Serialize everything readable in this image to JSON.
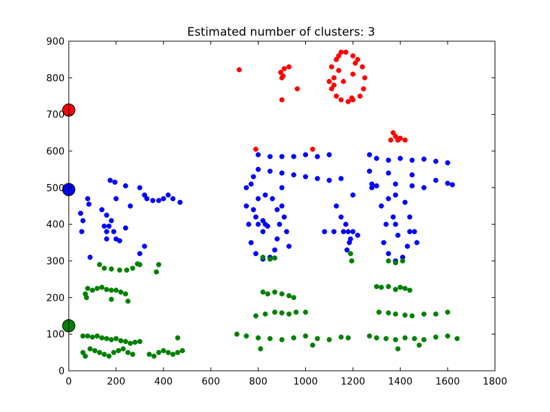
{
  "chart_data": {
    "type": "scatter",
    "title": "Estimated number of clusters: 3",
    "xlabel": "",
    "ylabel": "",
    "xlim": [
      0,
      1800
    ],
    "ylim": [
      0,
      900
    ],
    "xticks": [
      0,
      200,
      400,
      600,
      800,
      1000,
      1200,
      1400,
      1600,
      1800
    ],
    "yticks": [
      0,
      100,
      200,
      300,
      400,
      500,
      600,
      700,
      800,
      900
    ],
    "grid": false,
    "legend": "none",
    "colors": {
      "red": "#ff0000",
      "blue": "#0000ff",
      "green": "#008000"
    },
    "cluster_centers": [
      {
        "color": "red",
        "x": 0,
        "y": 712
      },
      {
        "color": "blue",
        "x": 0,
        "y": 495
      },
      {
        "color": "green",
        "x": 0,
        "y": 123
      }
    ],
    "series": [
      {
        "color": "red",
        "points": [
          [
            720,
            822
          ],
          [
            790,
            605
          ],
          [
            1030,
            605
          ],
          [
            895,
            815
          ],
          [
            905,
            805
          ],
          [
            910,
            825
          ],
          [
            900,
            800
          ],
          [
            930,
            830
          ],
          [
            900,
            740
          ],
          [
            965,
            770
          ],
          [
            1100,
            790
          ],
          [
            1110,
            830
          ],
          [
            1120,
            780
          ],
          [
            1130,
            850
          ],
          [
            1140,
            860
          ],
          [
            1150,
            870
          ],
          [
            1170,
            870
          ],
          [
            1200,
            860
          ],
          [
            1220,
            850
          ],
          [
            1240,
            830
          ],
          [
            1250,
            800
          ],
          [
            1245,
            770
          ],
          [
            1230,
            750
          ],
          [
            1200,
            740
          ],
          [
            1180,
            735
          ],
          [
            1150,
            740
          ],
          [
            1130,
            750
          ],
          [
            1120,
            800
          ],
          [
            1110,
            770
          ],
          [
            1140,
            820
          ],
          [
            1160,
            790
          ],
          [
            1200,
            810
          ],
          [
            1210,
            840
          ],
          [
            1195,
            745
          ],
          [
            1370,
            650
          ],
          [
            1380,
            640
          ],
          [
            1390,
            630
          ],
          [
            1400,
            635
          ],
          [
            1420,
            630
          ],
          [
            1360,
            630
          ]
        ]
      },
      {
        "color": "blue",
        "points": [
          [
            80,
            470
          ],
          [
            85,
            455
          ],
          [
            50,
            430
          ],
          [
            60,
            410
          ],
          [
            55,
            380
          ],
          [
            175,
            520
          ],
          [
            195,
            515
          ],
          [
            240,
            505
          ],
          [
            300,
            500
          ],
          [
            320,
            480
          ],
          [
            200,
            470
          ],
          [
            140,
            440
          ],
          [
            160,
            425
          ],
          [
            180,
            410
          ],
          [
            150,
            395
          ],
          [
            170,
            395
          ],
          [
            160,
            380
          ],
          [
            160,
            360
          ],
          [
            190,
            380
          ],
          [
            200,
            360
          ],
          [
            215,
            355
          ],
          [
            240,
            390
          ],
          [
            260,
            450
          ],
          [
            330,
            470
          ],
          [
            355,
            465
          ],
          [
            380,
            465
          ],
          [
            400,
            470
          ],
          [
            440,
            470
          ],
          [
            470,
            460
          ],
          [
            420,
            480
          ],
          [
            320,
            340
          ],
          [
            300,
            320
          ],
          [
            90,
            310
          ],
          [
            800,
            590
          ],
          [
            850,
            585
          ],
          [
            900,
            585
          ],
          [
            950,
            585
          ],
          [
            1000,
            590
          ],
          [
            1050,
            585
          ],
          [
            1100,
            590
          ],
          [
            800,
            550
          ],
          [
            850,
            545
          ],
          [
            900,
            540
          ],
          [
            950,
            535
          ],
          [
            1000,
            530
          ],
          [
            1050,
            525
          ],
          [
            1100,
            520
          ],
          [
            1150,
            525
          ],
          [
            780,
            530
          ],
          [
            750,
            500
          ],
          [
            770,
            510
          ],
          [
            900,
            500
          ],
          [
            750,
            450
          ],
          [
            760,
            400
          ],
          [
            770,
            350
          ],
          [
            790,
            320
          ],
          [
            820,
            305
          ],
          [
            850,
            310
          ],
          [
            870,
            330
          ],
          [
            880,
            360
          ],
          [
            890,
            400
          ],
          [
            880,
            440
          ],
          [
            860,
            470
          ],
          [
            830,
            480
          ],
          [
            800,
            470
          ],
          [
            780,
            440
          ],
          [
            790,
            420
          ],
          [
            800,
            400
          ],
          [
            820,
            380
          ],
          [
            820,
            410
          ],
          [
            830,
            400
          ],
          [
            840,
            395
          ],
          [
            900,
            450
          ],
          [
            910,
            420
          ],
          [
            920,
            380
          ],
          [
            930,
            340
          ],
          [
            1080,
            380
          ],
          [
            1120,
            380
          ],
          [
            1160,
            380
          ],
          [
            1200,
            380
          ],
          [
            1130,
            450
          ],
          [
            1150,
            420
          ],
          [
            1170,
            400
          ],
          [
            1180,
            380
          ],
          [
            1185,
            350
          ],
          [
            1175,
            330
          ],
          [
            1190,
            360
          ],
          [
            1200,
            480
          ],
          [
            1220,
            370
          ],
          [
            1270,
            590
          ],
          [
            1300,
            580
          ],
          [
            1350,
            575
          ],
          [
            1400,
            580
          ],
          [
            1450,
            575
          ],
          [
            1500,
            578
          ],
          [
            1550,
            572
          ],
          [
            1600,
            568
          ],
          [
            1270,
            545
          ],
          [
            1350,
            540
          ],
          [
            1450,
            535
          ],
          [
            1550,
            520
          ],
          [
            1600,
            512
          ],
          [
            1620,
            508
          ],
          [
            1280,
            510
          ],
          [
            1300,
            505
          ],
          [
            1380,
            510
          ],
          [
            1450,
            505
          ],
          [
            1500,
            500
          ],
          [
            1280,
            500
          ],
          [
            1320,
            450
          ],
          [
            1340,
            400
          ],
          [
            1330,
            350
          ],
          [
            1350,
            320
          ],
          [
            1380,
            300
          ],
          [
            1410,
            310
          ],
          [
            1430,
            340
          ],
          [
            1440,
            380
          ],
          [
            1440,
            420
          ],
          [
            1420,
            460
          ],
          [
            1380,
            480
          ],
          [
            1350,
            470
          ],
          [
            1370,
            420
          ],
          [
            1380,
            400
          ],
          [
            1390,
            370
          ],
          [
            1460,
            380
          ],
          [
            1470,
            350
          ]
        ]
      },
      {
        "color": "green",
        "points": [
          [
            130,
            290
          ],
          [
            150,
            280
          ],
          [
            180,
            278
          ],
          [
            215,
            275
          ],
          [
            245,
            275
          ],
          [
            270,
            280
          ],
          [
            290,
            292
          ],
          [
            300,
            290
          ],
          [
            380,
            290
          ],
          [
            370,
            270
          ],
          [
            80,
            225
          ],
          [
            100,
            220
          ],
          [
            120,
            225
          ],
          [
            140,
            228
          ],
          [
            160,
            222
          ],
          [
            180,
            220
          ],
          [
            200,
            220
          ],
          [
            220,
            215
          ],
          [
            240,
            210
          ],
          [
            70,
            210
          ],
          [
            75,
            200
          ],
          [
            180,
            195
          ],
          [
            250,
            190
          ],
          [
            60,
            95
          ],
          [
            80,
            95
          ],
          [
            100,
            92
          ],
          [
            120,
            95
          ],
          [
            140,
            90
          ],
          [
            160,
            88
          ],
          [
            180,
            85
          ],
          [
            200,
            88
          ],
          [
            220,
            82
          ],
          [
            240,
            80
          ],
          [
            260,
            75
          ],
          [
            280,
            78
          ],
          [
            300,
            80
          ],
          [
            60,
            50
          ],
          [
            70,
            40
          ],
          [
            90,
            60
          ],
          [
            110,
            55
          ],
          [
            130,
            50
          ],
          [
            150,
            45
          ],
          [
            170,
            40
          ],
          [
            190,
            50
          ],
          [
            210,
            55
          ],
          [
            230,
            60
          ],
          [
            250,
            50
          ],
          [
            270,
            45
          ],
          [
            340,
            45
          ],
          [
            360,
            40
          ],
          [
            380,
            50
          ],
          [
            400,
            55
          ],
          [
            420,
            50
          ],
          [
            440,
            45
          ],
          [
            460,
            50
          ],
          [
            480,
            55
          ],
          [
            460,
            90
          ],
          [
            820,
            310
          ],
          [
            850,
            305
          ],
          [
            870,
            308
          ],
          [
            1190,
            320
          ],
          [
            1195,
            300
          ],
          [
            1350,
            300
          ],
          [
            1380,
            295
          ],
          [
            1410,
            300
          ],
          [
            820,
            215
          ],
          [
            840,
            210
          ],
          [
            870,
            215
          ],
          [
            900,
            210
          ],
          [
            930,
            205
          ],
          [
            950,
            200
          ],
          [
            1300,
            230
          ],
          [
            1320,
            228
          ],
          [
            1350,
            230
          ],
          [
            1380,
            222
          ],
          [
            1400,
            228
          ],
          [
            1420,
            225
          ],
          [
            1440,
            220
          ],
          [
            790,
            150
          ],
          [
            830,
            155
          ],
          [
            870,
            160
          ],
          [
            900,
            158
          ],
          [
            930,
            155
          ],
          [
            960,
            160
          ],
          [
            1000,
            160
          ],
          [
            1310,
            160
          ],
          [
            1350,
            158
          ],
          [
            1380,
            155
          ],
          [
            1420,
            152
          ],
          [
            1450,
            150
          ],
          [
            1500,
            155
          ],
          [
            1550,
            155
          ],
          [
            1600,
            160
          ],
          [
            710,
            100
          ],
          [
            750,
            95
          ],
          [
            800,
            90
          ],
          [
            850,
            88
          ],
          [
            900,
            85
          ],
          [
            950,
            90
          ],
          [
            1000,
            95
          ],
          [
            1050,
            88
          ],
          [
            1100,
            85
          ],
          [
            1150,
            92
          ],
          [
            1180,
            90
          ],
          [
            1270,
            95
          ],
          [
            1300,
            90
          ],
          [
            1340,
            88
          ],
          [
            1380,
            85
          ],
          [
            1420,
            90
          ],
          [
            1460,
            88
          ],
          [
            1500,
            85
          ],
          [
            1550,
            92
          ],
          [
            1600,
            95
          ],
          [
            1640,
            88
          ],
          [
            810,
            60
          ],
          [
            1030,
            70
          ],
          [
            1390,
            60
          ],
          [
            1480,
            70
          ]
        ]
      }
    ]
  }
}
